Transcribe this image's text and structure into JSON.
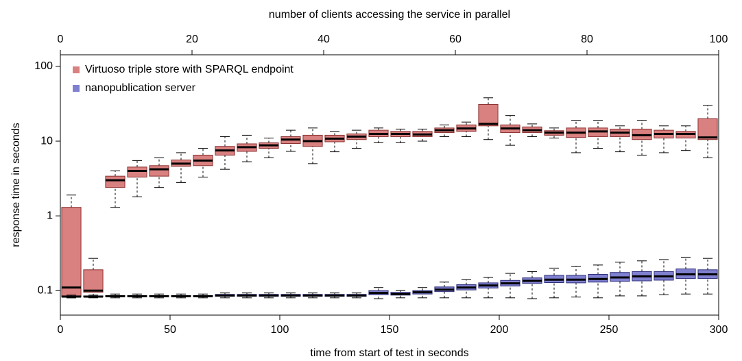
{
  "chart_data": {
    "type": "box",
    "title": "number of clients accessing the service in parallel",
    "xlabel": "time from start of test in seconds",
    "ylabel": "response time in seconds",
    "x": [
      5,
      15,
      25,
      35,
      45,
      55,
      65,
      75,
      85,
      95,
      105,
      115,
      125,
      135,
      145,
      155,
      165,
      175,
      185,
      195,
      205,
      215,
      225,
      235,
      245,
      255,
      265,
      275,
      285,
      295
    ],
    "xlim": [
      0,
      300
    ],
    "xticks": [
      0,
      50,
      100,
      150,
      200,
      250,
      300
    ],
    "x2lim": [
      0,
      100
    ],
    "x2ticks": [
      0,
      20,
      40,
      60,
      80,
      100
    ],
    "ylim": [
      0.047,
      143
    ],
    "yticks": [
      0.1,
      1,
      10,
      100
    ],
    "log_y": true,
    "legend": "top-left",
    "series": [
      {
        "name": "Virtuoso triple store with SPARQL endpoint",
        "color": "#d98080",
        "edge": "#8a2e2e",
        "min": [
          0.08,
          0.085,
          1.3,
          1.8,
          2.4,
          2.8,
          3.3,
          4.2,
          5.3,
          6,
          7.3,
          5,
          7.2,
          8,
          9.5,
          9.5,
          10,
          11.5,
          11.5,
          10.5,
          8.8,
          11.5,
          11,
          7,
          8,
          7.2,
          6.5,
          7,
          7.5,
          6
        ],
        "q1": [
          0.085,
          0.095,
          2.4,
          3.3,
          3.4,
          4.6,
          4.7,
          6.5,
          7.3,
          8,
          9.3,
          8.5,
          9.8,
          10.5,
          11.5,
          11.5,
          11.5,
          13,
          13.5,
          16,
          13,
          13,
          12,
          11.2,
          11.5,
          11.5,
          10.5,
          11,
          11,
          10.5
        ],
        "median": [
          0.11,
          0.1,
          3,
          4,
          4.2,
          5,
          5.5,
          7.5,
          8.3,
          8.8,
          10.5,
          10,
          10.8,
          11.5,
          12.5,
          12.5,
          12.3,
          14,
          14.8,
          17,
          14.8,
          14,
          13,
          13,
          13.5,
          13,
          12,
          12.5,
          12.5,
          11.2
        ],
        "q3": [
          1.3,
          0.19,
          3.4,
          4.5,
          4.7,
          5.6,
          6.5,
          8.5,
          9.2,
          9.5,
          11.5,
          12,
          12,
          12.5,
          14,
          13.5,
          13.5,
          15,
          16.5,
          31,
          16.5,
          15.5,
          13.8,
          15,
          15,
          14.5,
          14.5,
          14,
          13.5,
          20
        ],
        "max": [
          1.9,
          0.27,
          4,
          5.5,
          6,
          7,
          8,
          11.5,
          12,
          11,
          14,
          15,
          13.5,
          14,
          15,
          14.5,
          14.5,
          16.5,
          18,
          38,
          22,
          17,
          15,
          19,
          19,
          16,
          19,
          16,
          16,
          30
        ]
      },
      {
        "name": "nanopublication server",
        "color": "#8080d0",
        "edge": "#2e2e7a",
        "min": [
          0.08,
          0.08,
          0.08,
          0.08,
          0.08,
          0.08,
          0.08,
          0.08,
          0.08,
          0.08,
          0.08,
          0.08,
          0.08,
          0.08,
          0.078,
          0.08,
          0.08,
          0.08,
          0.08,
          0.08,
          0.08,
          0.078,
          0.08,
          0.082,
          0.08,
          0.085,
          0.085,
          0.088,
          0.09,
          0.09
        ],
        "q1": [
          0.082,
          0.082,
          0.083,
          0.083,
          0.083,
          0.083,
          0.083,
          0.084,
          0.084,
          0.084,
          0.084,
          0.084,
          0.084,
          0.084,
          0.088,
          0.087,
          0.09,
          0.097,
          0.102,
          0.108,
          0.115,
          0.125,
          0.128,
          0.127,
          0.13,
          0.133,
          0.135,
          0.138,
          0.145,
          0.145
        ],
        "median": [
          0.083,
          0.083,
          0.084,
          0.084,
          0.084,
          0.084,
          0.084,
          0.086,
          0.086,
          0.086,
          0.086,
          0.086,
          0.086,
          0.086,
          0.093,
          0.09,
          0.095,
          0.103,
          0.11,
          0.117,
          0.125,
          0.135,
          0.14,
          0.14,
          0.143,
          0.15,
          0.155,
          0.155,
          0.165,
          0.165
        ],
        "q3": [
          0.085,
          0.085,
          0.086,
          0.086,
          0.086,
          0.086,
          0.086,
          0.089,
          0.089,
          0.089,
          0.089,
          0.089,
          0.089,
          0.089,
          0.1,
          0.095,
          0.1,
          0.112,
          0.12,
          0.127,
          0.137,
          0.148,
          0.16,
          0.16,
          0.165,
          0.175,
          0.18,
          0.18,
          0.195,
          0.19
        ],
        "max": [
          0.087,
          0.087,
          0.09,
          0.09,
          0.09,
          0.09,
          0.09,
          0.093,
          0.093,
          0.093,
          0.093,
          0.093,
          0.093,
          0.093,
          0.11,
          0.1,
          0.11,
          0.13,
          0.14,
          0.15,
          0.17,
          0.18,
          0.2,
          0.21,
          0.22,
          0.24,
          0.25,
          0.26,
          0.28,
          0.27
        ]
      }
    ]
  }
}
